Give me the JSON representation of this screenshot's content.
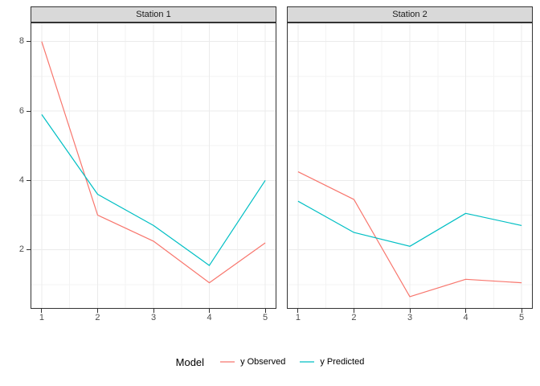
{
  "chart_data": {
    "type": "line",
    "title": "",
    "xlabel": "",
    "ylabel": "",
    "x": [
      1,
      2,
      3,
      4,
      5
    ],
    "x_ticks": [
      "1",
      "2",
      "3",
      "4",
      "5"
    ],
    "y_ticks": [
      2,
      4,
      6,
      8
    ],
    "y_minor": [
      1,
      3,
      5,
      7
    ],
    "x_minor": [
      1.5,
      2.5,
      3.5,
      4.5
    ],
    "xlim": [
      0.8,
      5.2
    ],
    "ylim": [
      0.3,
      8.55
    ],
    "grid": "major+minor",
    "facets": [
      {
        "label": "Station 1",
        "series": [
          {
            "name": "y Observed",
            "values": [
              8.0,
              3.0,
              2.25,
              1.05,
              2.2
            ]
          },
          {
            "name": "y Predicted",
            "values": [
              5.9,
              3.6,
              2.7,
              1.55,
              4.0
            ]
          }
        ]
      },
      {
        "label": "Station 2",
        "series": [
          {
            "name": "y Observed",
            "values": [
              4.25,
              3.45,
              0.65,
              1.15,
              1.05
            ]
          },
          {
            "name": "y Predicted",
            "values": [
              3.4,
              2.5,
              2.1,
              3.05,
              2.7
            ]
          }
        ]
      }
    ],
    "legend": {
      "title": "Model",
      "position": "bottom",
      "entries": [
        {
          "label": "y Observed",
          "color": "#F8766D"
        },
        {
          "label": "y Predicted",
          "color": "#00BFC4"
        }
      ]
    }
  },
  "colors": {
    "background": "#FFFFFF",
    "strip_fill": "#D9D9D9",
    "panel_border": "#333333",
    "grid_major": "#EBEBEB",
    "grid_minor": "#F3F3F3",
    "axis_text": "#4D4D4D",
    "tick_mark": "#333333",
    "observed": "#F8766D",
    "predicted": "#00BFC4"
  }
}
